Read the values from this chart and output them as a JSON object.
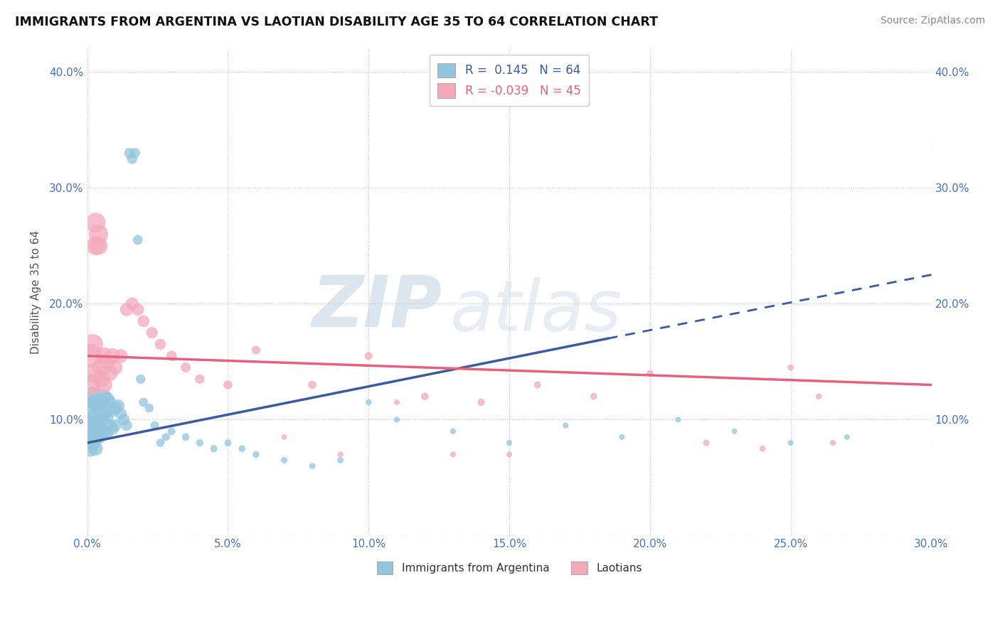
{
  "title": "IMMIGRANTS FROM ARGENTINA VS LAOTIAN DISABILITY AGE 35 TO 64 CORRELATION CHART",
  "source_text": "Source: ZipAtlas.com",
  "ylabel": "Disability Age 35 to 64",
  "xlim": [
    0.0,
    0.3
  ],
  "ylim": [
    0.0,
    0.42
  ],
  "xticks": [
    0.0,
    0.05,
    0.1,
    0.15,
    0.2,
    0.25,
    0.3
  ],
  "xticklabels": [
    "0.0%",
    "5.0%",
    "10.0%",
    "15.0%",
    "20.0%",
    "25.0%",
    "30.0%"
  ],
  "yticks": [
    0.0,
    0.1,
    0.2,
    0.3,
    0.4
  ],
  "yticklabels": [
    "",
    "10.0%",
    "20.0%",
    "30.0%",
    "40.0%"
  ],
  "right_yticklabels": [
    "",
    "10.0%",
    "20.0%",
    "30.0%",
    "40.0%"
  ],
  "blue_R": 0.145,
  "blue_N": 64,
  "pink_R": -0.039,
  "pink_N": 45,
  "blue_color": "#92C5DE",
  "pink_color": "#F4A9BB",
  "blue_line_color": "#3A5BA0",
  "pink_line_color": "#E8607A",
  "watermark_zip": "ZIP",
  "watermark_atlas": "atlas",
  "legend_label_blue": "Immigrants from Argentina",
  "legend_label_pink": "Laotians",
  "blue_scatter_x": [
    0.001,
    0.001,
    0.001,
    0.001,
    0.002,
    0.002,
    0.002,
    0.002,
    0.003,
    0.003,
    0.003,
    0.003,
    0.004,
    0.004,
    0.004,
    0.005,
    0.005,
    0.005,
    0.006,
    0.006,
    0.006,
    0.007,
    0.007,
    0.007,
    0.008,
    0.008,
    0.009,
    0.009,
    0.01,
    0.01,
    0.011,
    0.012,
    0.013,
    0.014,
    0.015,
    0.016,
    0.017,
    0.018,
    0.019,
    0.02,
    0.022,
    0.024,
    0.026,
    0.028,
    0.03,
    0.035,
    0.04,
    0.045,
    0.05,
    0.055,
    0.06,
    0.07,
    0.08,
    0.09,
    0.1,
    0.11,
    0.13,
    0.15,
    0.17,
    0.19,
    0.21,
    0.23,
    0.25,
    0.27
  ],
  "blue_scatter_y": [
    0.11,
    0.095,
    0.085,
    0.075,
    0.12,
    0.1,
    0.09,
    0.08,
    0.115,
    0.095,
    0.085,
    0.075,
    0.11,
    0.095,
    0.085,
    0.115,
    0.1,
    0.088,
    0.12,
    0.105,
    0.09,
    0.118,
    0.102,
    0.088,
    0.115,
    0.095,
    0.108,
    0.092,
    0.11,
    0.095,
    0.112,
    0.105,
    0.1,
    0.095,
    0.33,
    0.325,
    0.33,
    0.255,
    0.135,
    0.115,
    0.11,
    0.095,
    0.08,
    0.085,
    0.09,
    0.085,
    0.08,
    0.075,
    0.08,
    0.075,
    0.07,
    0.065,
    0.06,
    0.065,
    0.115,
    0.1,
    0.09,
    0.08,
    0.095,
    0.085,
    0.1,
    0.09,
    0.08,
    0.085
  ],
  "blue_scatter_sizes": [
    400,
    350,
    300,
    250,
    380,
    320,
    270,
    220,
    300,
    260,
    220,
    190,
    260,
    220,
    190,
    220,
    190,
    160,
    200,
    175,
    150,
    185,
    160,
    140,
    170,
    148,
    160,
    140,
    155,
    135,
    145,
    130,
    120,
    110,
    100,
    95,
    90,
    85,
    80,
    75,
    70,
    65,
    60,
    55,
    50,
    48,
    45,
    43,
    42,
    40,
    38,
    35,
    33,
    32,
    30,
    28,
    28,
    27,
    27,
    26,
    26,
    25,
    25,
    25
  ],
  "pink_scatter_x": [
    0.001,
    0.001,
    0.002,
    0.002,
    0.003,
    0.003,
    0.004,
    0.004,
    0.005,
    0.005,
    0.006,
    0.006,
    0.007,
    0.008,
    0.009,
    0.01,
    0.012,
    0.014,
    0.016,
    0.018,
    0.02,
    0.023,
    0.026,
    0.03,
    0.035,
    0.04,
    0.05,
    0.06,
    0.08,
    0.1,
    0.12,
    0.14,
    0.16,
    0.18,
    0.2,
    0.22,
    0.24,
    0.25,
    0.26,
    0.265,
    0.13,
    0.15,
    0.09,
    0.11,
    0.07
  ],
  "pink_scatter_y": [
    0.155,
    0.13,
    0.165,
    0.14,
    0.27,
    0.25,
    0.26,
    0.25,
    0.145,
    0.135,
    0.155,
    0.13,
    0.15,
    0.14,
    0.155,
    0.145,
    0.155,
    0.195,
    0.2,
    0.195,
    0.185,
    0.175,
    0.165,
    0.155,
    0.145,
    0.135,
    0.13,
    0.16,
    0.13,
    0.155,
    0.12,
    0.115,
    0.13,
    0.12,
    0.14,
    0.08,
    0.075,
    0.145,
    0.12,
    0.08,
    0.07,
    0.07,
    0.07,
    0.115,
    0.085
  ],
  "pink_scatter_sizes": [
    550,
    450,
    400,
    350,
    380,
    340,
    360,
    320,
    300,
    270,
    280,
    250,
    260,
    240,
    220,
    200,
    175,
    160,
    150,
    140,
    130,
    120,
    110,
    100,
    90,
    80,
    70,
    65,
    60,
    55,
    50,
    45,
    42,
    40,
    38,
    35,
    33,
    32,
    30,
    28,
    28,
    27,
    27,
    26,
    25
  ],
  "blue_line_x0": 0.0,
  "blue_line_y0": 0.08,
  "blue_line_x1": 0.185,
  "blue_line_y1": 0.17,
  "blue_line_dash_x0": 0.185,
  "blue_line_dash_y0": 0.17,
  "blue_line_dash_x1": 0.3,
  "blue_line_dash_y1": 0.225,
  "pink_line_x0": 0.0,
  "pink_line_y0": 0.155,
  "pink_line_x1": 0.3,
  "pink_line_y1": 0.13
}
